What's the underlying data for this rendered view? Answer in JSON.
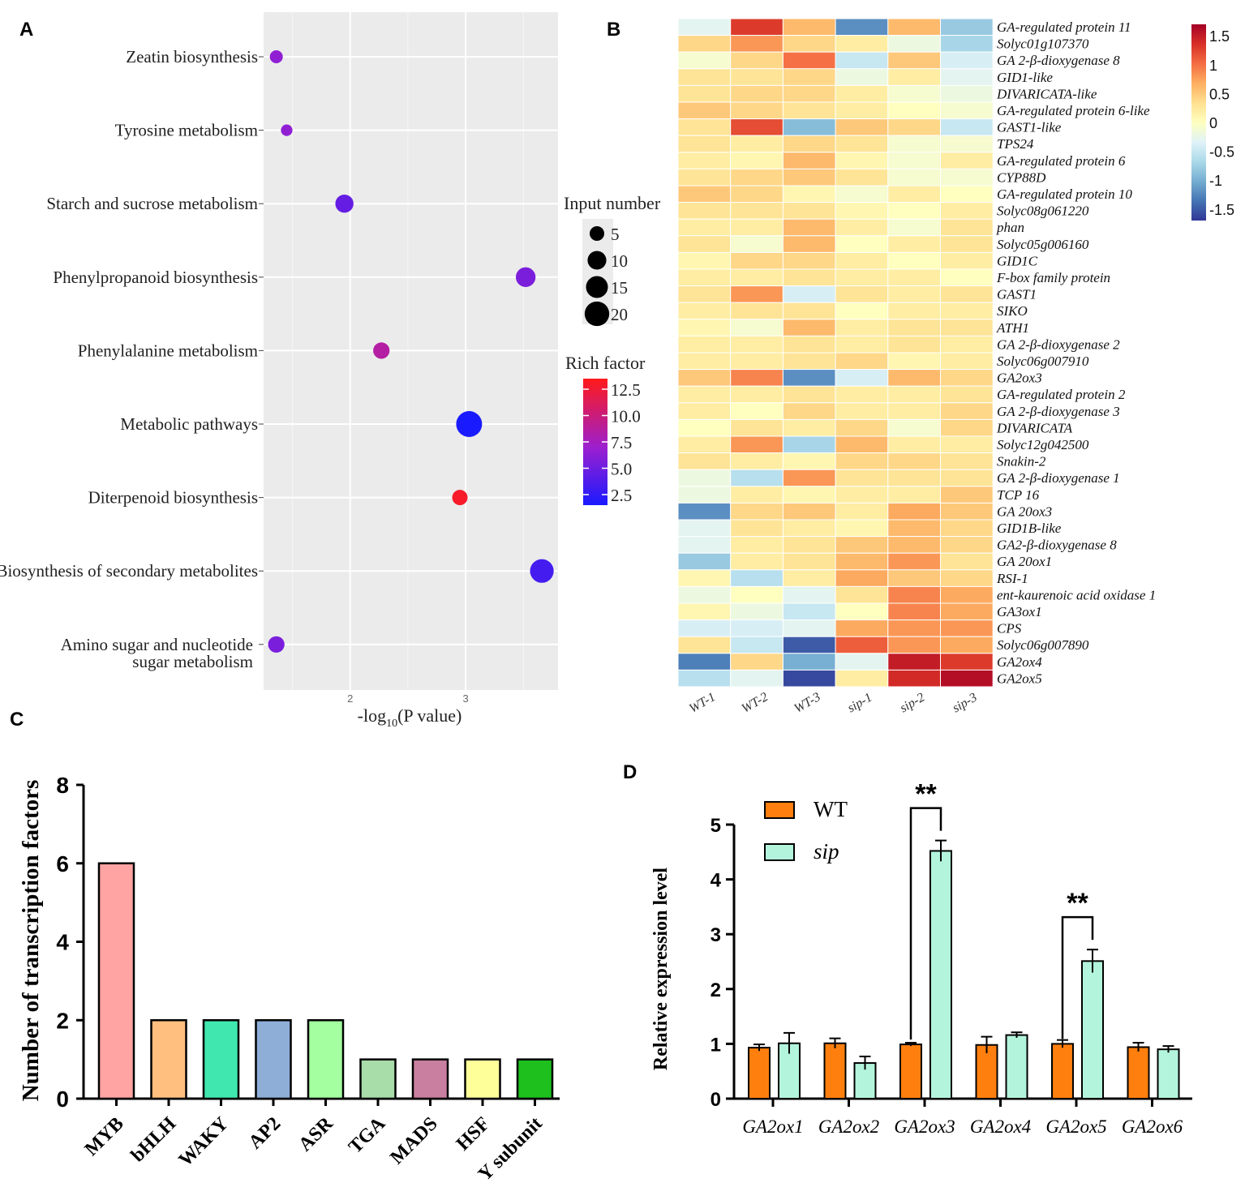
{
  "panels": {
    "A": "A",
    "B": "B",
    "C": "C",
    "D": "D"
  },
  "chart_data": [
    {
      "panel": "A",
      "type": "scatter",
      "xlabel": "-log10(P value)",
      "xlabel_main": "-log",
      "xlabel_sub": "10",
      "xlabel_rest": "(P value)",
      "xticks": [
        2,
        3
      ],
      "xlim": [
        1.25,
        3.8
      ],
      "categories": [
        "Zeatin biosynthesis",
        "Tyrosine metabolism",
        "Starch and sucrose metabolism",
        "Phenylpropanoid biosynthesis",
        "Phenylalanine metabolism",
        "Metabolic pathways",
        "Diterpenoid biosynthesis",
        "Biosynthesis of secondary metabolites",
        "Amino sugar and nucleotide sugar metabolism"
      ],
      "category_lines": [
        [
          "Zeatin biosynthesis"
        ],
        [
          "Tyrosine metabolism"
        ],
        [
          "Starch and sucrose metabolism"
        ],
        [
          "Phenylpropanoid biosynthesis"
        ],
        [
          "Phenylalanine metabolism"
        ],
        [
          "Metabolic pathways"
        ],
        [
          "Diterpenoid biosynthesis"
        ],
        [
          "Biosynthesis of secondary metabolites"
        ],
        [
          "Amino sugar and nucleotide",
          "sugar metabolism"
        ]
      ],
      "x": [
        1.36,
        1.45,
        1.95,
        3.52,
        2.27,
        3.03,
        2.95,
        3.66,
        1.36
      ],
      "input_number": [
        3,
        2,
        8,
        10,
        6,
        20,
        5,
        16,
        6
      ],
      "rich_factor": [
        7.0,
        7.0,
        5.0,
        6.0,
        9.0,
        1.5,
        13.0,
        3.5,
        6.0
      ],
      "legend_size_title": "Input number",
      "legend_size_values": [
        5,
        10,
        15,
        20
      ],
      "legend_color_title": "Rich factor",
      "legend_color_ticks": [
        "12.5",
        "10.0",
        "7.5",
        "5.0",
        "2.5"
      ],
      "legend_color_tick_values": [
        12.5,
        10.0,
        7.5,
        5.0,
        2.5
      ],
      "color_range": [
        1.5,
        13.5
      ],
      "color_low": "#1a1aff",
      "color_mid": "#9b1fd0",
      "color_high": "#ff1a1a"
    },
    {
      "panel": "B",
      "type": "heatmap",
      "columns": [
        "WT-1",
        "WT-2",
        "WT-3",
        "sip-1",
        "sip-2",
        "sip-3"
      ],
      "rows": [
        "GA-regulated protein 11",
        "Solyc01g107370",
        "GA 2-β-dioxygenase 8",
        "GID1-like",
        "DIVARICATA-like",
        "GA-regulated protein 6-like",
        "GAST1-like",
        "TPS24",
        "GA-regulated protein 6",
        "CYP88D",
        "GA-regulated protein 10",
        "Solyc08g061220",
        "phan",
        "Solyc05g006160",
        "GID1C",
        "F-box family protein",
        "GAST1",
        "SIKO",
        "ATH1",
        "GA 2-β-dioxygenase 2",
        "Solyc06g007910",
        "GA2ox3",
        "GA-regulated protein 2",
        "GA 2-β-dioxygenase 3",
        "DIVARICATA",
        "Solyc12g042500",
        "Snakin-2",
        "GA 2-β-dioxygenase 1",
        "TCP 16",
        "GA 20ox3",
        "GID1B-like",
        "GA2-β-dioxygenase 8",
        "GA 20ox1",
        "RSI-1",
        "ent-kaurenoic acid oxidase 1",
        "GA3ox1",
        "CPS",
        "Solyc06g007890",
        "GA2ox4",
        "GA2ox5"
      ],
      "values": [
        [
          -0.3,
          1.3,
          0.6,
          -1.2,
          0.6,
          -0.8
        ],
        [
          0.4,
          0.8,
          0.4,
          0.2,
          -0.2,
          -0.7
        ],
        [
          -0.1,
          0.4,
          1.0,
          -0.5,
          0.5,
          -0.4
        ],
        [
          0.3,
          0.3,
          0.4,
          -0.2,
          0.2,
          -0.3
        ],
        [
          0.3,
          0.4,
          0.4,
          0.2,
          -0.1,
          -0.2
        ],
        [
          0.5,
          0.4,
          0.3,
          0.2,
          0.0,
          -0.1
        ],
        [
          0.3,
          1.2,
          -0.9,
          0.5,
          0.4,
          -0.5
        ],
        [
          0.3,
          0.2,
          0.4,
          0.3,
          -0.1,
          -0.1
        ],
        [
          0.2,
          0.1,
          0.6,
          0.1,
          -0.1,
          0.2
        ],
        [
          0.3,
          0.4,
          0.5,
          0.3,
          -0.1,
          -0.1
        ],
        [
          0.5,
          0.4,
          0.1,
          -0.1,
          0.2,
          0.0
        ],
        [
          0.3,
          0.3,
          0.3,
          0.1,
          0.0,
          0.2
        ],
        [
          0.2,
          0.2,
          0.6,
          0.2,
          -0.1,
          0.3
        ],
        [
          0.3,
          -0.1,
          0.6,
          0.0,
          0.2,
          0.3
        ],
        [
          0.1,
          0.4,
          0.4,
          0.2,
          0.0,
          0.2
        ],
        [
          0.2,
          0.2,
          0.3,
          0.2,
          0.2,
          0.0
        ],
        [
          0.3,
          0.8,
          -0.4,
          0.3,
          0.2,
          0.3
        ],
        [
          0.2,
          0.3,
          0.3,
          0.0,
          0.2,
          0.2
        ],
        [
          0.1,
          -0.1,
          0.6,
          0.2,
          0.3,
          0.3
        ],
        [
          0.2,
          0.2,
          0.3,
          0.2,
          0.3,
          0.2
        ],
        [
          0.2,
          0.2,
          0.3,
          0.4,
          0.1,
          0.2
        ],
        [
          0.5,
          0.9,
          -1.2,
          -0.4,
          0.6,
          0.4
        ],
        [
          0.2,
          0.2,
          0.3,
          0.2,
          0.2,
          0.3
        ],
        [
          0.2,
          0.0,
          0.4,
          0.2,
          0.2,
          0.4
        ],
        [
          0.0,
          0.3,
          0.2,
          0.4,
          -0.1,
          0.4
        ],
        [
          0.2,
          0.8,
          -0.7,
          0.6,
          0.2,
          0.2
        ],
        [
          0.3,
          0.2,
          0.1,
          0.4,
          0.4,
          0.3
        ],
        [
          -0.2,
          -0.6,
          0.8,
          0.3,
          0.3,
          0.3
        ],
        [
          -0.2,
          0.2,
          0.1,
          0.2,
          0.2,
          0.5
        ],
        [
          -1.2,
          0.4,
          0.5,
          0.2,
          0.7,
          0.5
        ],
        [
          -0.3,
          0.3,
          0.2,
          0.1,
          0.6,
          0.4
        ],
        [
          -0.3,
          0.2,
          0.3,
          0.5,
          0.6,
          0.4
        ],
        [
          -0.8,
          0.2,
          0.3,
          0.6,
          0.8,
          0.3
        ],
        [
          0.1,
          -0.6,
          0.2,
          0.7,
          0.5,
          0.4
        ],
        [
          -0.2,
          0.0,
          -0.3,
          0.3,
          0.9,
          0.7
        ],
        [
          0.1,
          -0.2,
          -0.5,
          0.0,
          0.9,
          0.7
        ],
        [
          -0.4,
          -0.4,
          -0.3,
          0.7,
          0.8,
          0.8
        ],
        [
          0.3,
          -0.5,
          -1.5,
          1.1,
          0.8,
          0.7
        ],
        [
          -1.3,
          0.4,
          -1.0,
          -0.3,
          1.5,
          1.3
        ],
        [
          -0.6,
          -0.3,
          -1.6,
          0.2,
          1.4,
          1.6
        ]
      ],
      "colorbar_ticks": [
        "1.5",
        "1",
        "0.5",
        "0",
        "-0.5",
        "-1",
        "-1.5"
      ],
      "colorbar_tick_values": [
        1.5,
        1,
        0.5,
        0,
        -0.5,
        -1,
        -1.5
      ],
      "vmin": -1.7,
      "vmax": 1.7
    },
    {
      "panel": "C",
      "type": "bar",
      "ylabel": "Number of transcription factors",
      "categories": [
        "MYB",
        "bHLH",
        "WAKY",
        "AP2",
        "ASR",
        "TGA",
        "MADS",
        "HSF",
        "Y subunit"
      ],
      "values": [
        6,
        2,
        2,
        2,
        2,
        1,
        1,
        1,
        1
      ],
      "colors": [
        "#ffa3a3",
        "#ffc07f",
        "#40e8b0",
        "#8eaed8",
        "#a3ff9f",
        "#a8dca8",
        "#c97f9f",
        "#ffff9a",
        "#1ec01e"
      ],
      "ylim": [
        0,
        8
      ],
      "yticks": [
        0,
        2,
        4,
        6,
        8
      ]
    },
    {
      "panel": "D",
      "type": "bar",
      "ylabel": "Relative expression level",
      "categories": [
        "GA2ox1",
        "GA2ox2",
        "GA2ox3",
        "GA2ox4",
        "GA2ox5",
        "GA2ox6"
      ],
      "series": [
        {
          "name": "WT",
          "color": "#ff7f0e",
          "values": [
            0.93,
            1.01,
            0.99,
            0.98,
            1.0,
            0.94
          ],
          "errors": [
            0.06,
            0.09,
            0.03,
            0.15,
            0.07,
            0.08
          ]
        },
        {
          "name": "sip",
          "color": "#b3f5dc",
          "values": [
            1.01,
            0.65,
            4.52,
            1.16,
            2.51,
            0.9
          ],
          "errors": [
            0.19,
            0.12,
            0.19,
            0.05,
            0.21,
            0.06
          ]
        }
      ],
      "ylim": [
        0,
        5
      ],
      "yticks": [
        0,
        1,
        2,
        3,
        4,
        5
      ],
      "significance": [
        {
          "category_index": 2,
          "label": "**"
        },
        {
          "category_index": 4,
          "label": "**"
        }
      ]
    }
  ]
}
